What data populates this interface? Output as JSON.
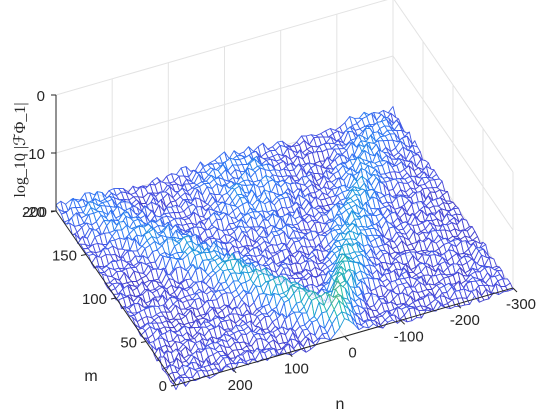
{
  "chart_data": {
    "type": "surface",
    "title": "",
    "xlabel": "n",
    "ylabel": "m",
    "zlabel": "log_10 |ℱΦ_1|",
    "xlim": [
      -300,
      300
    ],
    "ylim": [
      0,
      200
    ],
    "zlim": [
      -20,
      0
    ],
    "x_ticks": [
      200,
      100,
      0,
      -100,
      -200,
      -300
    ],
    "y_ticks": [
      0,
      50,
      100,
      150,
      200
    ],
    "z_ticks": [
      0,
      -10,
      -20
    ],
    "noise_floor": -20,
    "surface_peak_n": 0,
    "surface_peak_m": 150,
    "grid": true,
    "colormap": [
      "#3e26a8",
      "#4a4de0",
      "#2f7bf6",
      "#1ca6d9",
      "#23c0a4",
      "#84cb5f",
      "#dcc231",
      "#f9fb15"
    ]
  }
}
